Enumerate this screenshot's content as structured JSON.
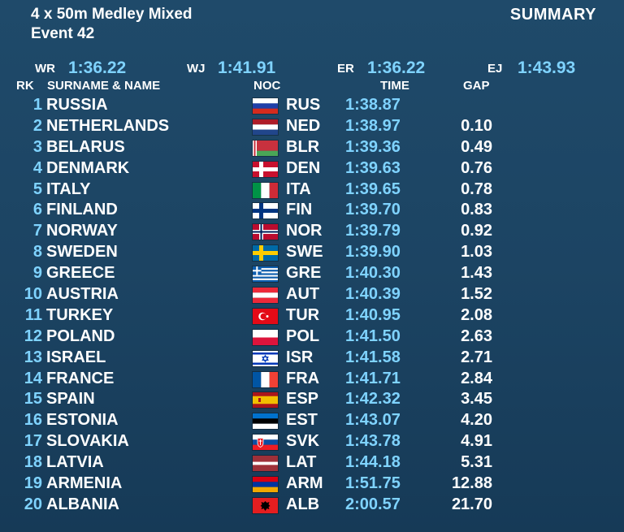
{
  "event": {
    "title": "4 x 50m Medley Mixed",
    "number": "Event 42",
    "summary_label": "SUMMARY"
  },
  "records": [
    {
      "label": "WR",
      "value": "1:36.22"
    },
    {
      "label": "WJ",
      "value": "1:41.91"
    },
    {
      "label": "ER",
      "value": "1:36.22"
    },
    {
      "label": "EJ",
      "value": "1:43.93"
    }
  ],
  "headers": {
    "rk": "RK",
    "name": "SURNAME & NAME",
    "noc": "NOC",
    "time": "TIME",
    "gap": "GAP"
  },
  "results": [
    {
      "rk": "1",
      "name": "RUSSIA",
      "noc": "RUS",
      "time": "1:38.87",
      "gap": "",
      "flag": "flag-russia-icon"
    },
    {
      "rk": "2",
      "name": "NETHERLANDS",
      "noc": "NED",
      "time": "1:38.97",
      "gap": "0.10",
      "flag": "flag-netherlands-icon"
    },
    {
      "rk": "3",
      "name": "BELARUS",
      "noc": "BLR",
      "time": "1:39.36",
      "gap": "0.49",
      "flag": "flag-belarus-icon"
    },
    {
      "rk": "4",
      "name": "DENMARK",
      "noc": "DEN",
      "time": "1:39.63",
      "gap": "0.76",
      "flag": "flag-denmark-icon"
    },
    {
      "rk": "5",
      "name": "ITALY",
      "noc": "ITA",
      "time": "1:39.65",
      "gap": "0.78",
      "flag": "flag-italy-icon"
    },
    {
      "rk": "6",
      "name": "FINLAND",
      "noc": "FIN",
      "time": "1:39.70",
      "gap": "0.83",
      "flag": "flag-finland-icon"
    },
    {
      "rk": "7",
      "name": "NORWAY",
      "noc": "NOR",
      "time": "1:39.79",
      "gap": "0.92",
      "flag": "flag-norway-icon"
    },
    {
      "rk": "8",
      "name": "SWEDEN",
      "noc": "SWE",
      "time": "1:39.90",
      "gap": "1.03",
      "flag": "flag-sweden-icon"
    },
    {
      "rk": "9",
      "name": "GREECE",
      "noc": "GRE",
      "time": "1:40.30",
      "gap": "1.43",
      "flag": "flag-greece-icon"
    },
    {
      "rk": "10",
      "name": "AUSTRIA",
      "noc": "AUT",
      "time": "1:40.39",
      "gap": "1.52",
      "flag": "flag-austria-icon"
    },
    {
      "rk": "11",
      "name": "TURKEY",
      "noc": "TUR",
      "time": "1:40.95",
      "gap": "2.08",
      "flag": "flag-turkey-icon"
    },
    {
      "rk": "12",
      "name": "POLAND",
      "noc": "POL",
      "time": "1:41.50",
      "gap": "2.63",
      "flag": "flag-poland-icon"
    },
    {
      "rk": "13",
      "name": "ISRAEL",
      "noc": "ISR",
      "time": "1:41.58",
      "gap": "2.71",
      "flag": "flag-israel-icon"
    },
    {
      "rk": "14",
      "name": "FRANCE",
      "noc": "FRA",
      "time": "1:41.71",
      "gap": "2.84",
      "flag": "flag-france-icon"
    },
    {
      "rk": "15",
      "name": "SPAIN",
      "noc": "ESP",
      "time": "1:42.32",
      "gap": "3.45",
      "flag": "flag-spain-icon"
    },
    {
      "rk": "16",
      "name": "ESTONIA",
      "noc": "EST",
      "time": "1:43.07",
      "gap": "4.20",
      "flag": "flag-estonia-icon"
    },
    {
      "rk": "17",
      "name": "SLOVAKIA",
      "noc": "SVK",
      "time": "1:43.78",
      "gap": "4.91",
      "flag": "flag-slovakia-icon"
    },
    {
      "rk": "18",
      "name": "LATVIA",
      "noc": "LAT",
      "time": "1:44.18",
      "gap": "5.31",
      "flag": "flag-latvia-icon"
    },
    {
      "rk": "19",
      "name": "ARMENIA",
      "noc": "ARM",
      "time": "1:51.75",
      "gap": "12.88",
      "flag": "flag-armenia-icon"
    },
    {
      "rk": "20",
      "name": "ALBANIA",
      "noc": "ALB",
      "time": "2:00.57",
      "gap": "21.70",
      "flag": "flag-albania-icon"
    }
  ],
  "colors": {
    "background": "#1c4463",
    "accent": "#7fd3ff",
    "text": "#ffffff"
  }
}
